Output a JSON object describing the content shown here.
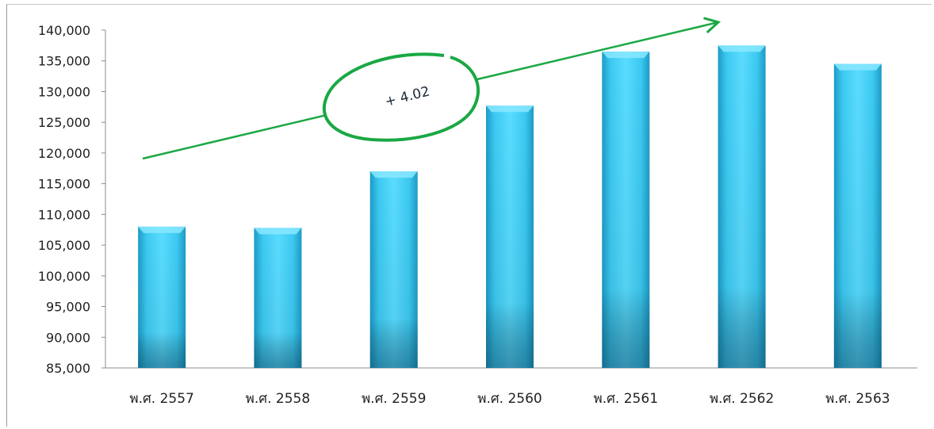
{
  "chart_data": {
    "type": "bar",
    "title": "",
    "xlabel": "",
    "ylabel": "",
    "categories": [
      "พ.ศ. 2557",
      "พ.ศ. 2558",
      "พ.ศ. 2559",
      "พ.ศ. 2560",
      "พ.ศ. 2561",
      "พ.ศ. 2562",
      "พ.ศ. 2563"
    ],
    "values": [
      108000,
      107800,
      117000,
      127700,
      136500,
      137500,
      134500
    ],
    "ylim": [
      85000,
      140000
    ],
    "yticks": [
      "85,000",
      "90,000",
      "95,000",
      "100,000",
      "105,000",
      "110,000",
      "115,000",
      "120,000",
      "125,000",
      "130,000",
      "135,000",
      "140,000"
    ],
    "ytick_values": [
      85000,
      90000,
      95000,
      100000,
      105000,
      110000,
      115000,
      120000,
      125000,
      130000,
      135000,
      140000
    ],
    "grid": false,
    "legend": "none",
    "bar_color": "#3dc8f0",
    "annotation": {
      "text": "+ 4.02",
      "color": "#1aa843"
    }
  }
}
